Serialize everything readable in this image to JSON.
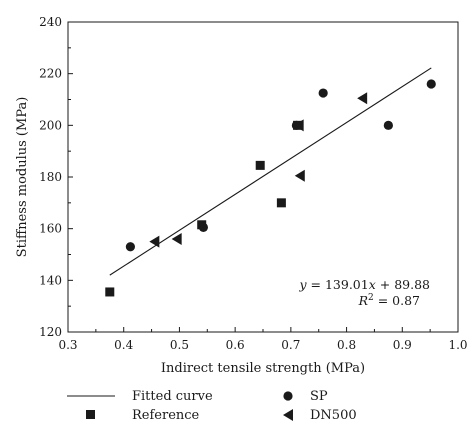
{
  "chart_data": {
    "type": "scatter",
    "title": "",
    "xlabel": "Indirect tensile strength (MPa)",
    "ylabel": "Stiffness modulus (MPa)",
    "xlim": [
      0.3,
      1.0
    ],
    "ylim": [
      120,
      240
    ],
    "xticks": [
      0.3,
      0.4,
      0.5,
      0.6,
      0.7,
      0.8,
      0.9,
      1.0
    ],
    "yticks": [
      120,
      140,
      160,
      180,
      200,
      220,
      240
    ],
    "xtick_labels": [
      "0.3",
      "0.4",
      "0.5",
      "0.6",
      "0.7",
      "0.8",
      "0.9",
      "1.0"
    ],
    "ytick_labels": [
      "120",
      "140",
      "160",
      "180",
      "200",
      "220",
      "240"
    ],
    "grid": false,
    "legend_position": "bottom",
    "series": [
      {
        "name": "Reference",
        "marker": "square",
        "points": [
          {
            "x": 0.375,
            "y": 135.5
          },
          {
            "x": 0.54,
            "y": 161.5
          },
          {
            "x": 0.645,
            "y": 184.5
          },
          {
            "x": 0.683,
            "y": 170
          },
          {
            "x": 0.712,
            "y": 200
          }
        ]
      },
      {
        "name": "SP",
        "marker": "circle",
        "points": [
          {
            "x": 0.412,
            "y": 153
          },
          {
            "x": 0.543,
            "y": 160.5
          },
          {
            "x": 0.71,
            "y": 200
          },
          {
            "x": 0.758,
            "y": 212.5
          },
          {
            "x": 0.875,
            "y": 200
          },
          {
            "x": 0.952,
            "y": 216
          }
        ]
      },
      {
        "name": "DN500",
        "marker": "triangle-left",
        "points": [
          {
            "x": 0.455,
            "y": 155
          },
          {
            "x": 0.495,
            "y": 156
          },
          {
            "x": 0.714,
            "y": 200
          },
          {
            "x": 0.716,
            "y": 180.5
          },
          {
            "x": 0.828,
            "y": 210.5
          }
        ]
      }
    ],
    "fit": {
      "name": "Fitted curve",
      "slope": 139.01,
      "intercept": 89.88,
      "x_range": [
        0.375,
        0.952
      ],
      "equation_text": "y = 139.01x + 89.88",
      "equation_lhs": "y",
      "equation_mid": " = 139.01",
      "equation_var": "x",
      "equation_rhs": " + 89.88",
      "r2_text": "R² = 0.87",
      "r2_lhs": "R",
      "r2_sup": "2",
      "r2_rhs": " = 0.87"
    },
    "legend": {
      "fitted": "Fitted curve",
      "reference": "Reference",
      "sp": "SP",
      "dn500": "DN500"
    }
  }
}
